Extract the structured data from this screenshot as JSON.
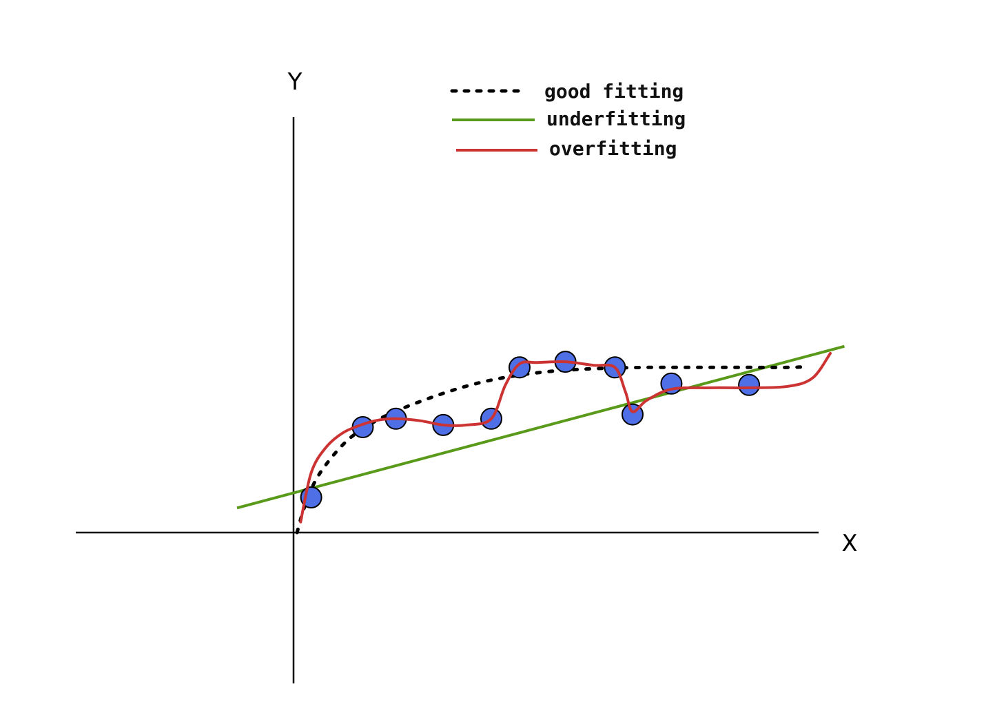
{
  "chart_data": {
    "type": "scatter",
    "xlabel": "X",
    "ylabel": "Y",
    "xlim": [
      -3.15,
      7.6
    ],
    "ylim": [
      -2.05,
      5.95
    ],
    "grid": false,
    "legend_position": "top-center",
    "points": {
      "x": [
        0.25,
        0.98,
        1.45,
        2.12,
        2.8,
        3.2,
        3.85,
        4.55,
        4.8,
        5.35,
        6.45
      ],
      "y": [
        0.5,
        1.5,
        1.62,
        1.53,
        1.62,
        2.35,
        2.43,
        2.35,
        1.68,
        2.12,
        2.1
      ],
      "color": "#4e6fe6"
    },
    "series": [
      {
        "name": "good fitting",
        "style": "dotted",
        "color": "#000000",
        "x": [
          0.05,
          0.15,
          0.3,
          0.5,
          0.75,
          1.0,
          1.3,
          1.6,
          2.0,
          2.4,
          2.8,
          3.2,
          3.6,
          4.0,
          4.5,
          5.0,
          5.5,
          6.0,
          6.5,
          7.0,
          7.3
        ],
        "y": [
          0.0,
          0.35,
          0.72,
          1.02,
          1.3,
          1.49,
          1.66,
          1.79,
          1.94,
          2.07,
          2.17,
          2.24,
          2.29,
          2.32,
          2.34,
          2.35,
          2.35,
          2.35,
          2.35,
          2.35,
          2.36
        ]
      },
      {
        "name": "underfitting",
        "style": "solid",
        "color": "#5a9a1a",
        "x": [
          -0.8,
          7.8
        ],
        "y": [
          0.35,
          2.65
        ]
      },
      {
        "name": "overfitting",
        "style": "solid",
        "color": "#cc3333",
        "x": [
          0.1,
          0.25,
          0.45,
          0.7,
          0.98,
          1.2,
          1.45,
          1.8,
          2.12,
          2.45,
          2.8,
          3.0,
          3.2,
          3.45,
          3.85,
          4.25,
          4.55,
          4.7,
          4.8,
          5.0,
          5.35,
          5.9,
          6.45,
          7.0,
          7.35,
          7.6
        ],
        "y": [
          0.15,
          0.85,
          1.2,
          1.42,
          1.54,
          1.6,
          1.62,
          1.59,
          1.53,
          1.53,
          1.62,
          2.1,
          2.4,
          2.42,
          2.43,
          2.38,
          2.35,
          2.0,
          1.72,
          1.88,
          2.04,
          2.06,
          2.06,
          2.08,
          2.2,
          2.55
        ]
      }
    ]
  }
}
